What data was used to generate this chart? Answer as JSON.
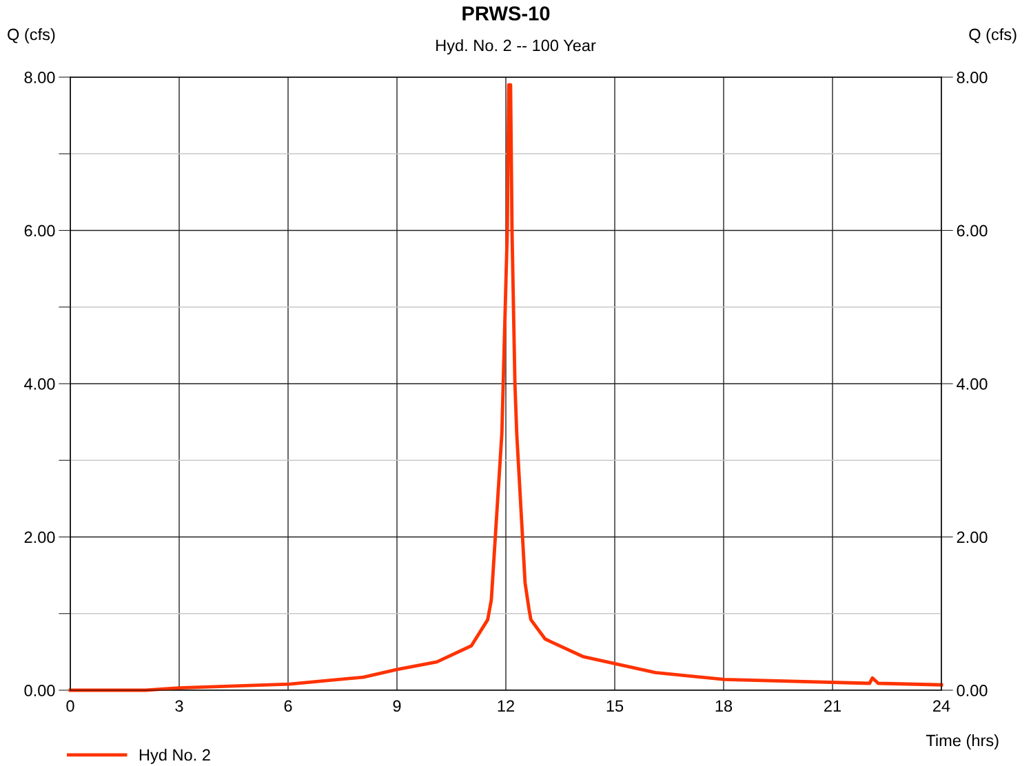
{
  "chart_data": {
    "type": "line",
    "title": "PRWS-10",
    "subtitle": "Hyd. No. 2 -- 100 Year",
    "xlabel": "Time (hrs)",
    "ylabel": "Q (cfs)",
    "y2label": "Q (cfs)",
    "series": [
      {
        "name": "Hyd No. 2",
        "color": "#ff3300",
        "x": [
          0,
          2.07,
          3,
          6.04,
          8.07,
          9,
          10.1,
          11.05,
          11.5,
          11.6,
          11.89,
          12.04,
          12.08,
          12.13,
          12.17,
          12.25,
          12.3,
          12.53,
          12.64,
          12.69,
          13.08,
          13.25,
          14.12,
          16.12,
          18.02,
          22.02,
          22.1,
          22.26,
          24
        ],
        "values": [
          0,
          0,
          0.03,
          0.08,
          0.17,
          0.27,
          0.37,
          0.58,
          0.92,
          1.18,
          3.35,
          6.0,
          7.9,
          7.9,
          6.0,
          4.0,
          3.35,
          1.4,
          1.05,
          0.92,
          0.67,
          0.63,
          0.44,
          0.23,
          0.14,
          0.09,
          0.16,
          0.09,
          0.07
        ]
      }
    ],
    "xlim": [
      0,
      24
    ],
    "xticks": [
      0,
      3,
      6,
      9,
      12,
      15,
      18,
      21,
      24
    ],
    "ylim": [
      0,
      8
    ],
    "yticks": [
      {
        "value": 0,
        "label": "0.00"
      },
      {
        "value": 1,
        "label": null
      },
      {
        "value": 2,
        "label": "2.00"
      },
      {
        "value": 3,
        "label": null
      },
      {
        "value": 4,
        "label": "4.00"
      },
      {
        "value": 5,
        "label": null
      },
      {
        "value": 6,
        "label": "6.00"
      },
      {
        "value": 7,
        "label": null
      },
      {
        "value": 8,
        "label": "8.00"
      }
    ],
    "y2lim": [
      0,
      8
    ],
    "y2ticks": [
      {
        "value": 0,
        "label": "0.00"
      },
      {
        "value": 2,
        "label": "2.00"
      },
      {
        "value": 4,
        "label": "4.00"
      },
      {
        "value": 6,
        "label": "6.00"
      },
      {
        "value": 8,
        "label": "8.00"
      }
    ],
    "grid": true,
    "legend": "bottom left",
    "marker": "none",
    "line_style": "solid"
  }
}
